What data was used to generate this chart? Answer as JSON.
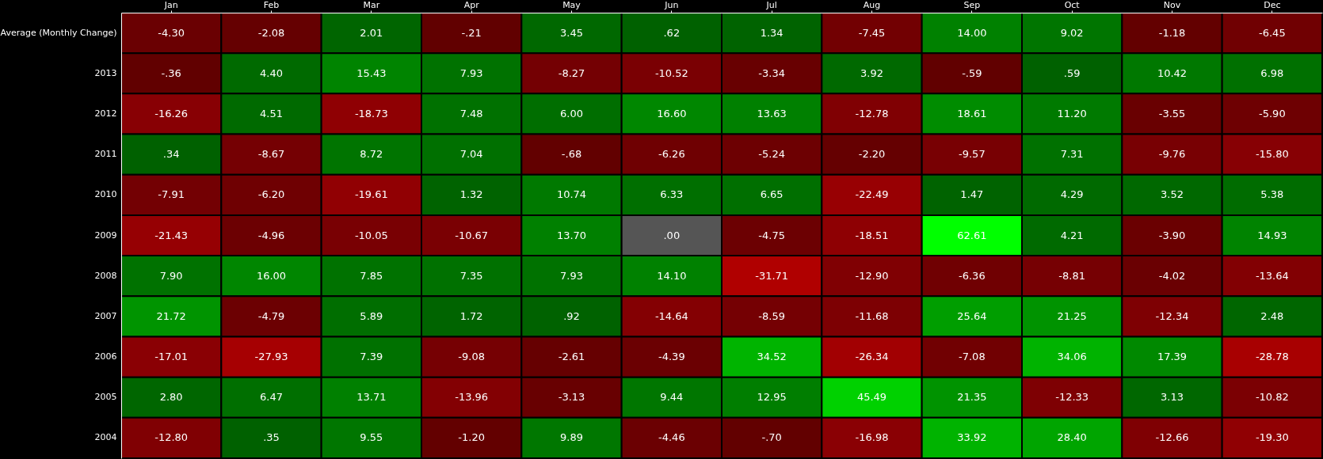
{
  "chart_data": {
    "type": "heatmap",
    "categories": [
      "Jan",
      "Feb",
      "Mar",
      "Apr",
      "May",
      "Jun",
      "Jul",
      "Aug",
      "Sep",
      "Oct",
      "Nov",
      "Dec"
    ],
    "y_categories": [
      "Average (Monthly Change)",
      "2013",
      "2012",
      "2011",
      "2010",
      "2009",
      "2008",
      "2007",
      "2006",
      "2005",
      "2004"
    ],
    "cells": [
      [
        -4.3,
        -2.08,
        2.01,
        -0.21,
        3.45,
        0.62,
        1.34,
        -7.45,
        14.0,
        9.02,
        -1.18,
        -6.45
      ],
      [
        -0.36,
        4.4,
        15.43,
        7.93,
        -8.27,
        -10.52,
        -3.34,
        3.92,
        -0.59,
        0.59,
        10.42,
        6.98
      ],
      [
        -16.26,
        4.51,
        -18.73,
        7.48,
        6.0,
        16.6,
        13.63,
        -12.78,
        18.61,
        11.2,
        -3.55,
        -5.9
      ],
      [
        0.34,
        -8.67,
        8.72,
        7.04,
        -0.68,
        -6.26,
        -5.24,
        -2.2,
        -9.57,
        7.31,
        -9.76,
        -15.8
      ],
      [
        -7.91,
        -6.2,
        -19.61,
        1.32,
        10.74,
        6.33,
        6.65,
        -22.49,
        1.47,
        4.29,
        3.52,
        5.38
      ],
      [
        -21.43,
        -4.96,
        -10.05,
        -10.67,
        13.7,
        0.0,
        -4.75,
        -18.51,
        62.61,
        4.21,
        -3.9,
        14.93
      ],
      [
        7.9,
        16.0,
        7.85,
        7.35,
        7.93,
        14.1,
        -31.71,
        -12.9,
        -6.36,
        -8.81,
        -4.02,
        -13.64
      ],
      [
        21.72,
        -4.79,
        5.89,
        1.72,
        0.92,
        -14.64,
        -8.59,
        -11.68,
        25.64,
        21.25,
        -12.34,
        2.48
      ],
      [
        -17.01,
        -27.93,
        7.39,
        -9.08,
        -2.61,
        -4.39,
        34.52,
        -26.34,
        -7.08,
        34.06,
        17.39,
        -28.78
      ],
      [
        2.8,
        6.47,
        13.71,
        -13.96,
        -3.13,
        9.44,
        12.95,
        45.49,
        21.35,
        -12.33,
        3.13,
        -10.82
      ],
      [
        -12.8,
        0.35,
        9.55,
        -1.2,
        9.89,
        -4.46,
        -0.7,
        -16.98,
        33.92,
        28.4,
        -12.66,
        -19.3
      ]
    ],
    "cell_labels": [
      [
        "-4.30",
        "-2.08",
        "2.01",
        "-.21",
        "3.45",
        ".62",
        "1.34",
        "-7.45",
        "14.00",
        "9.02",
        "-1.18",
        "-6.45"
      ],
      [
        "-.36",
        "4.40",
        "15.43",
        "7.93",
        "-8.27",
        "-10.52",
        "-3.34",
        "3.92",
        "-.59",
        ".59",
        "10.42",
        "6.98"
      ],
      [
        "-16.26",
        "4.51",
        "-18.73",
        "7.48",
        "6.00",
        "16.60",
        "13.63",
        "-12.78",
        "18.61",
        "11.20",
        "-3.55",
        "-5.90"
      ],
      [
        ".34",
        "-8.67",
        "8.72",
        "7.04",
        "-.68",
        "-6.26",
        "-5.24",
        "-2.20",
        "-9.57",
        "7.31",
        "-9.76",
        "-15.80"
      ],
      [
        "-7.91",
        "-6.20",
        "-19.61",
        "1.32",
        "10.74",
        "6.33",
        "6.65",
        "-22.49",
        "1.47",
        "4.29",
        "3.52",
        "5.38"
      ],
      [
        "-21.43",
        "-4.96",
        "-10.05",
        "-10.67",
        "13.70",
        ".00",
        "-4.75",
        "-18.51",
        "62.61",
        "4.21",
        "-3.90",
        "14.93"
      ],
      [
        "7.90",
        "16.00",
        "7.85",
        "7.35",
        "7.93",
        "14.10",
        "-31.71",
        "-12.90",
        "-6.36",
        "-8.81",
        "-4.02",
        "-13.64"
      ],
      [
        "21.72",
        "-4.79",
        "5.89",
        "1.72",
        ".92",
        "-14.64",
        "-8.59",
        "-11.68",
        "25.64",
        "21.25",
        "-12.34",
        "2.48"
      ],
      [
        "-17.01",
        "-27.93",
        "7.39",
        "-9.08",
        "-2.61",
        "-4.39",
        "34.52",
        "-26.34",
        "-7.08",
        "34.06",
        "17.39",
        "-28.78"
      ],
      [
        "2.80",
        "6.47",
        "13.71",
        "-13.96",
        "-3.13",
        "9.44",
        "12.95",
        "45.49",
        "21.35",
        "-12.33",
        "3.13",
        "-10.82"
      ],
      [
        "-12.80",
        ".35",
        "9.55",
        "-1.20",
        "9.89",
        "-4.46",
        "-.70",
        "-16.98",
        "33.92",
        "28.40",
        "-12.66",
        "-19.30"
      ]
    ]
  }
}
